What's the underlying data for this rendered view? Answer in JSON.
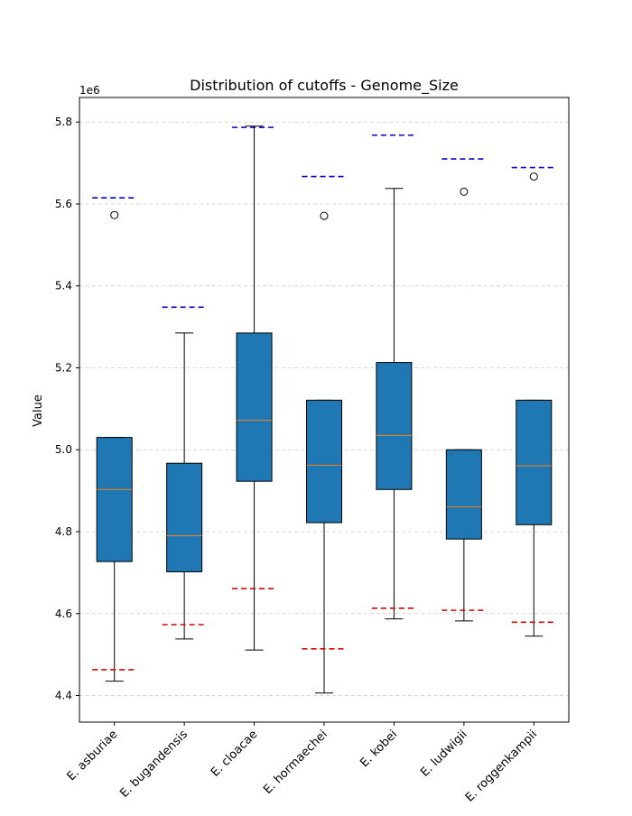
{
  "chart_data": {
    "type": "box",
    "title": "Distribution of cutoffs - Genome_Size",
    "ylabel": "Value",
    "xlabel": "",
    "y_offset_label": "1e6",
    "ylim": [
      4.335,
      5.86
    ],
    "yticks": [
      4.4,
      4.6,
      4.8,
      5.0,
      5.2,
      5.4,
      5.6,
      5.8
    ],
    "ytick_labels": [
      "4.4",
      "4.6",
      "4.8",
      "5.0",
      "5.2",
      "5.4",
      "5.6",
      "5.8"
    ],
    "grid": "y",
    "categories": [
      "E. asburiae",
      "E. bugandensis",
      "E. cloacae",
      "E. hormaechei",
      "E. kobei",
      "E. ludwigii",
      "E. roggenkampii"
    ],
    "boxes": [
      {
        "whisker_low": 4.435,
        "q1": 4.727,
        "median": 4.903,
        "q3": 5.03,
        "whisker_high": 5.03,
        "outliers": [
          5.573
        ],
        "upper_cutoff": 5.615,
        "lower_cutoff": 4.463
      },
      {
        "whisker_low": 4.538,
        "q1": 4.702,
        "median": 4.79,
        "q3": 4.967,
        "whisker_high": 5.285,
        "outliers": [],
        "upper_cutoff": 5.348,
        "lower_cutoff": 4.573
      },
      {
        "whisker_low": 4.511,
        "q1": 4.923,
        "median": 5.072,
        "q3": 5.285,
        "whisker_high": 5.79,
        "outliers": [],
        "upper_cutoff": 5.787,
        "lower_cutoff": 4.661
      },
      {
        "whisker_low": 4.406,
        "q1": 4.822,
        "median": 4.962,
        "q3": 5.121,
        "whisker_high": 5.121,
        "outliers": [
          5.571
        ],
        "upper_cutoff": 5.667,
        "lower_cutoff": 4.514
      },
      {
        "whisker_low": 4.587,
        "q1": 4.903,
        "median": 5.035,
        "q3": 5.213,
        "whisker_high": 5.638,
        "outliers": [],
        "upper_cutoff": 5.768,
        "lower_cutoff": 4.613
      },
      {
        "whisker_low": 4.582,
        "q1": 4.782,
        "median": 4.861,
        "q3": 5.0,
        "whisker_high": 5.0,
        "outliers": [
          5.63
        ],
        "upper_cutoff": 5.71,
        "lower_cutoff": 4.608
      },
      {
        "whisker_low": 4.545,
        "q1": 4.817,
        "median": 4.961,
        "q3": 5.121,
        "whisker_high": 5.121,
        "outliers": [
          5.667
        ],
        "upper_cutoff": 5.689,
        "lower_cutoff": 4.579
      }
    ],
    "colors": {
      "box_fill": "#1f77b4",
      "median": "#ff7f0e",
      "upper_cutoff": "#0000cc",
      "lower_cutoff": "#dd0000",
      "grid": "#cccccc"
    }
  }
}
